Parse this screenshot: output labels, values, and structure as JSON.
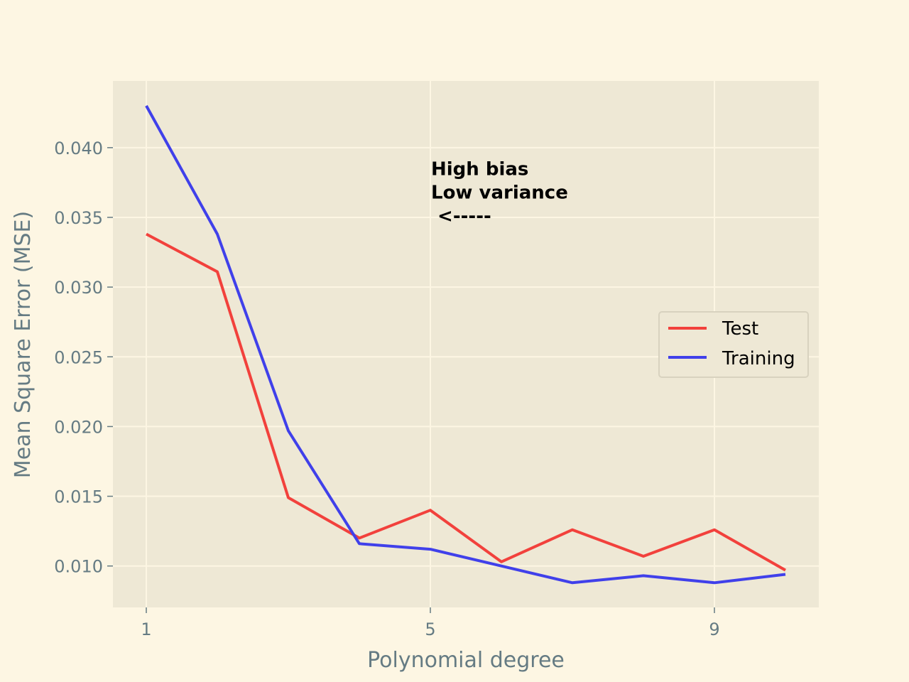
{
  "chart_data": {
    "type": "line",
    "title": "",
    "xlabel": "Polynomial degree",
    "ylabel": "Mean Square Error (MSE)",
    "x": [
      1,
      2,
      3,
      4,
      5,
      6,
      7,
      8,
      9,
      10
    ],
    "xticks": [
      1,
      5,
      9
    ],
    "xlim": [
      0.53,
      10.47
    ],
    "yticks": [
      0.01,
      0.015,
      0.02,
      0.025,
      0.03,
      0.035,
      0.04
    ],
    "ytick_labels": [
      "0.010",
      "0.015",
      "0.020",
      "0.025",
      "0.030",
      "0.035",
      "0.040"
    ],
    "xtick_labels": [
      "1",
      "5",
      "9"
    ],
    "ylim": [
      0.00703,
      0.04478
    ],
    "grid": true,
    "legend_position": "center-right",
    "series": [
      {
        "name": "Test",
        "color": "#f2413c",
        "values": [
          0.0338,
          0.0311,
          0.0149,
          0.012,
          0.014,
          0.0103,
          0.0126,
          0.0107,
          0.0126,
          0.0097
        ]
      },
      {
        "name": "Training",
        "color": "#4040ea",
        "values": [
          0.043,
          0.0338,
          0.0197,
          0.0116,
          0.0112,
          0.01,
          0.0088,
          0.0093,
          0.0088,
          0.0094
        ]
      }
    ],
    "annotation": {
      "lines": [
        "High bias",
        "Low variance",
        " <-----"
      ],
      "x": 5,
      "y": 0.0385
    }
  }
}
